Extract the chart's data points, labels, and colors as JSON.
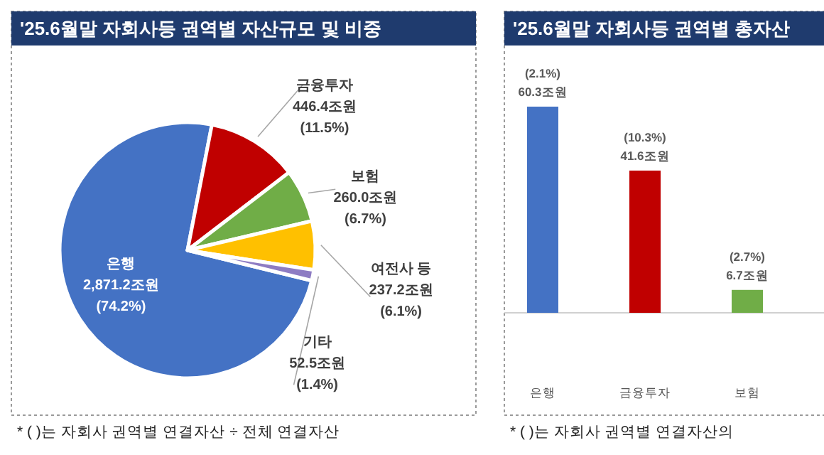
{
  "chart_data": [
    {
      "type": "pie",
      "title": "'25.6월말 자회사등 권역별 자산규모 및 비중",
      "categories": [
        "은행",
        "금융투자",
        "보험",
        "여전사 등",
        "기타"
      ],
      "values": [
        2871.2,
        446.4,
        260.0,
        237.2,
        52.5
      ],
      "colors": [
        "#4472c4",
        "#c00000",
        "#70ad47",
        "#ffc000",
        "#8e7cc3"
      ],
      "value_labels": [
        "2,871.2조원\n(74.2%)",
        "446.4조원\n(11.5%)",
        "260.0조원\n(6.7%)",
        "237.2조원\n(6.1%)",
        "52.5조원\n(1.4%)"
      ],
      "annotations": [
        "* (   )는 자회사 권역별 연결자산 ÷ 전체 연결자산"
      ]
    },
    {
      "type": "bar",
      "title": "'25.6월말 자회사등 권역별 총자산",
      "categories": [
        "은행",
        "금융투자",
        "보험"
      ],
      "values": [
        60.3,
        41.6,
        6.7
      ],
      "colors": [
        "#4472c4",
        "#c00000",
        "#70ad47"
      ],
      "value_labels": [
        "(2.1%)\n60.3조원",
        "(10.3%)\n41.6조원",
        "(2.7%)\n6.7조원"
      ],
      "annotations": [
        "* (   )는 자회사 권역별 연결자산의"
      ]
    }
  ]
}
